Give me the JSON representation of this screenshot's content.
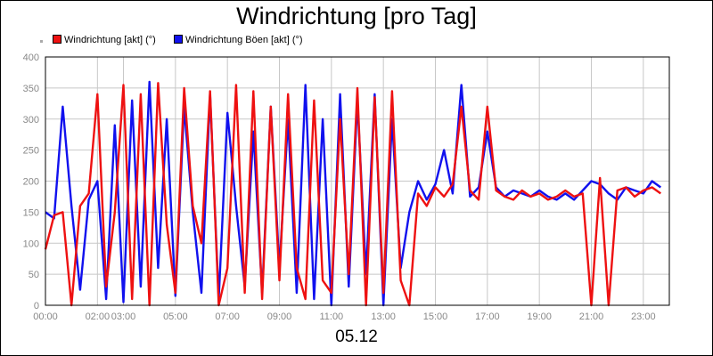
{
  "chart_data": {
    "type": "line",
    "title": "Windrichtung [pro Tag]",
    "xlabel": "05.12",
    "ylabel": "",
    "ylim": [
      0,
      400
    ],
    "xlim": [
      "00:00",
      "24:00"
    ],
    "yticks": [
      0,
      50,
      100,
      150,
      200,
      250,
      300,
      350,
      400
    ],
    "xticks": [
      "00:00",
      "02:00",
      "03:00",
      "05:00",
      "07:00",
      "09:00",
      "11:00",
      "13:00",
      "15:00",
      "17:00",
      "19:00",
      "21:00",
      "23:00"
    ],
    "grid": true,
    "legend_position": "top-left",
    "series": [
      {
        "name": "Windrichtung [akt] (°)",
        "color": "#ee1111",
        "x": [
          "00:00",
          "00:20",
          "00:40",
          "01:00",
          "01:20",
          "01:40",
          "02:00",
          "02:20",
          "02:40",
          "03:00",
          "03:20",
          "03:40",
          "04:00",
          "04:20",
          "04:40",
          "05:00",
          "05:20",
          "05:40",
          "06:00",
          "06:20",
          "06:40",
          "07:00",
          "07:20",
          "07:40",
          "08:00",
          "08:20",
          "08:40",
          "09:00",
          "09:20",
          "09:40",
          "10:00",
          "10:20",
          "10:40",
          "11:00",
          "11:20",
          "11:40",
          "12:00",
          "12:20",
          "12:40",
          "13:00",
          "13:20",
          "13:40",
          "14:00",
          "14:20",
          "14:40",
          "15:00",
          "15:20",
          "15:40",
          "16:00",
          "16:20",
          "16:40",
          "17:00",
          "17:20",
          "17:40",
          "18:00",
          "18:20",
          "18:40",
          "19:00",
          "19:20",
          "19:40",
          "20:00",
          "20:20",
          "20:40",
          "21:00",
          "21:20",
          "21:40",
          "22:00",
          "22:20",
          "22:40",
          "23:00",
          "23:20",
          "23:40"
        ],
        "values": [
          90,
          145,
          150,
          0,
          160,
          180,
          340,
          30,
          150,
          355,
          10,
          340,
          0,
          358,
          130,
          20,
          350,
          160,
          100,
          345,
          0,
          60,
          355,
          20,
          345,
          10,
          320,
          40,
          340,
          60,
          10,
          330,
          40,
          20,
          300,
          50,
          350,
          0,
          335,
          20,
          345,
          40,
          0,
          180,
          160,
          190,
          175,
          195,
          320,
          185,
          170,
          320,
          185,
          175,
          170,
          185,
          175,
          180,
          170,
          175,
          185,
          175,
          180,
          0,
          205,
          0,
          185,
          190,
          175,
          185,
          190,
          180
        ]
      },
      {
        "name": "Windrichtung Böen [akt] (°)",
        "color": "#1111ee",
        "x": [
          "00:00",
          "00:20",
          "00:40",
          "01:00",
          "01:20",
          "01:40",
          "02:00",
          "02:20",
          "02:40",
          "03:00",
          "03:20",
          "03:40",
          "04:00",
          "04:20",
          "04:40",
          "05:00",
          "05:20",
          "05:40",
          "06:00",
          "06:20",
          "06:40",
          "07:00",
          "07:20",
          "07:40",
          "08:00",
          "08:20",
          "08:40",
          "09:00",
          "09:20",
          "09:40",
          "10:00",
          "10:20",
          "10:40",
          "11:00",
          "11:20",
          "11:40",
          "12:00",
          "12:20",
          "12:40",
          "13:00",
          "13:20",
          "13:40",
          "14:00",
          "14:20",
          "14:40",
          "15:00",
          "15:20",
          "15:40",
          "16:00",
          "16:20",
          "16:40",
          "17:00",
          "17:20",
          "17:40",
          "18:00",
          "18:20",
          "18:40",
          "19:00",
          "19:20",
          "19:40",
          "20:00",
          "20:20",
          "20:40",
          "21:00",
          "21:20",
          "21:40",
          "22:00",
          "22:20",
          "22:40",
          "23:00",
          "23:20",
          "23:40"
        ],
        "values": [
          150,
          140,
          320,
          160,
          25,
          170,
          200,
          10,
          290,
          5,
          330,
          30,
          360,
          60,
          300,
          15,
          320,
          150,
          20,
          340,
          10,
          310,
          160,
          30,
          280,
          20,
          320,
          60,
          300,
          20,
          355,
          10,
          300,
          0,
          340,
          30,
          330,
          50,
          340,
          0,
          300,
          60,
          150,
          200,
          170,
          195,
          250,
          180,
          355,
          175,
          190,
          280,
          190,
          175,
          185,
          180,
          175,
          185,
          175,
          170,
          180,
          170,
          185,
          200,
          195,
          180,
          170,
          190,
          185,
          180,
          200,
          190
        ]
      }
    ]
  }
}
